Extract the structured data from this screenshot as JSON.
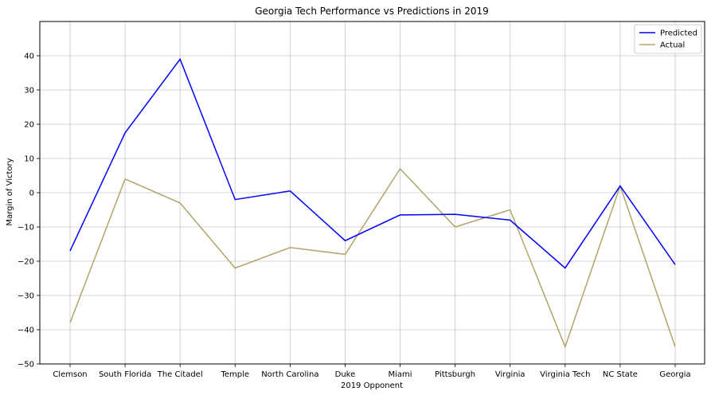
{
  "chart_data": {
    "type": "line",
    "title": "Georgia Tech Performance vs Predictions in 2019",
    "xlabel": "2019 Opponent",
    "ylabel": "Margin of Victory",
    "categories": [
      "Clemson",
      "South Florida",
      "The Citadel",
      "Temple",
      "North Carolina",
      "Duke",
      "Miami",
      "Pittsburgh",
      "Virginia",
      "Virginia Tech",
      "NC State",
      "Georgia"
    ],
    "ylim": [
      -50,
      50
    ],
    "yticks": [
      -50,
      -40,
      -30,
      -20,
      -10,
      0,
      10,
      20,
      30,
      40
    ],
    "ytick_labels": [
      "−50",
      "−40",
      "−30",
      "−20",
      "−10",
      "0",
      "10",
      "20",
      "30",
      "40"
    ],
    "grid": true,
    "legend_position": "top-right",
    "series": [
      {
        "name": "Predicted",
        "color": "#0000ff",
        "values": [
          -17,
          17.5,
          39,
          -2,
          0.5,
          -14,
          -6.5,
          -6.3,
          -8,
          -22,
          2,
          -21
        ]
      },
      {
        "name": "Actual",
        "color": "#b3a369",
        "values": [
          -38,
          4,
          -3,
          -22,
          -16,
          -18,
          7,
          -10,
          -5,
          -45,
          2,
          -45
        ]
      }
    ]
  }
}
